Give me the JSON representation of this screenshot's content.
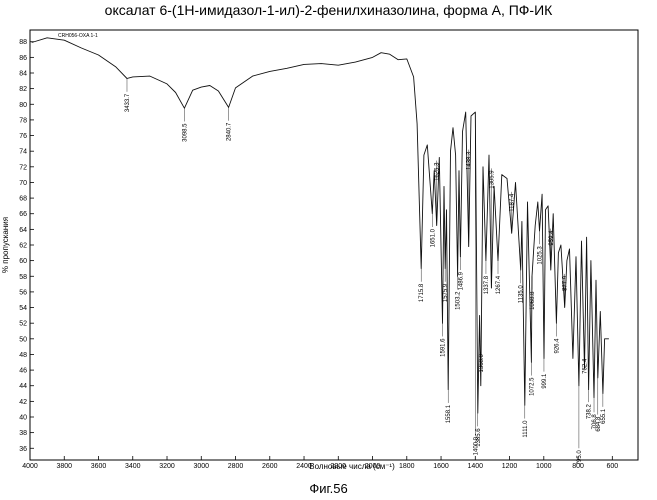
{
  "title": "оксалат 6-(1Н-имидазол-1-ил)-2-фенилхиназолина, форма А, ПФ-ИК",
  "caption": "Фиг.56",
  "chart_data": {
    "type": "line",
    "xlabel": "Волновые числа (см⁻¹)",
    "ylabel": "% пропускания",
    "xlim": [
      4000,
      450
    ],
    "ylim": [
      34.5,
      89.5
    ],
    "x_ticks": [
      4000,
      3800,
      3600,
      3400,
      3200,
      3000,
      2800,
      2600,
      2400,
      2200,
      2000,
      1800,
      1600,
      1400,
      1200,
      1000,
      800,
      600
    ],
    "y_ticks": [
      36,
      38,
      40,
      42,
      44,
      46,
      48,
      50,
      52,
      54,
      56,
      58,
      60,
      62,
      64,
      66,
      68,
      70,
      72,
      74,
      76,
      78,
      80,
      82,
      84,
      86,
      88
    ],
    "grid": false,
    "series": [
      {
        "name": "",
        "x": [
          3990,
          3900,
          3800,
          3700,
          3600,
          3500,
          3433.7,
          3400,
          3300,
          3200,
          3150,
          3098.5,
          3050,
          3000,
          2950,
          2900,
          2840.7,
          2800,
          2700,
          2600,
          2500,
          2400,
          2300,
          2200,
          2100,
          2000,
          1950,
          1900,
          1850,
          1800,
          1760,
          1740,
          1715.8,
          1700,
          1680,
          1651.0,
          1640,
          1625.3,
          1610,
          1591.6,
          1583,
          1575.9,
          1568,
          1558.1,
          1545,
          1530,
          1515,
          1503.2,
          1495,
          1486.9,
          1475,
          1456,
          1438.3,
          1425,
          1400.0,
          1385.6,
          1375,
          1368.0,
          1355,
          1337.8,
          1320,
          1305.9,
          1290,
          1267.4,
          1245,
          1215,
          1187.4,
          1165,
          1135.0,
          1128,
          1111.0,
          1095,
          1072.5,
          1068.8,
          1050,
          1035,
          1025.3,
          1010,
          999.1,
          990,
          975,
          959.4,
          945,
          926.4,
          915,
          900,
          877.9,
          865,
          850,
          830,
          812,
          795.0,
          780,
          762.4,
          750,
          738.2,
          725,
          706.8,
          695,
          684.8,
          670,
          655.1,
          645,
          620
        ],
        "y": [
          87.9,
          88.5,
          88.2,
          87.2,
          86.3,
          84.8,
          83.3,
          83.5,
          83.6,
          82.6,
          81.5,
          79.5,
          81.8,
          82.2,
          82.4,
          81.7,
          79.6,
          82.1,
          83.6,
          84.2,
          84.6,
          85.1,
          85.2,
          85.0,
          85.4,
          86.0,
          86.6,
          86.4,
          85.7,
          85.8,
          83.5,
          77.5,
          59.0,
          73.5,
          74.8,
          66.0,
          71.5,
          64.5,
          73.2,
          52.0,
          69.5,
          59.0,
          66.5,
          43.5,
          74.0,
          77.0,
          73.5,
          58.0,
          71.5,
          60.5,
          76.5,
          79.0,
          61.8,
          78.5,
          79.0,
          40.5,
          53.0,
          44.0,
          72.0,
          60.0,
          73.5,
          56.5,
          69.5,
          60.0,
          71.0,
          70.5,
          63.5,
          70.0,
          58.8,
          65.0,
          41.5,
          67.5,
          47.0,
          58.0,
          64.5,
          67.5,
          63.8,
          68.5,
          47.5,
          66.5,
          67.0,
          58.8,
          66.0,
          52.0,
          61.0,
          62.0,
          54.0,
          60.0,
          61.5,
          47.5,
          60.5,
          44.0,
          62.5,
          46.2,
          63.0,
          43.5,
          60.0,
          42.5,
          57.5,
          45.0,
          53.5,
          43.0,
          50.0,
          50.0
        ]
      }
    ],
    "annotations": [
      {
        "label": "3433.7",
        "x": 3433.7,
        "y": 83.3,
        "label_end_y": 81.6
      },
      {
        "label": "3098.5",
        "x": 3098.5,
        "y": 79.5,
        "label_end_y": 77.8
      },
      {
        "label": "2840.7",
        "x": 2840.7,
        "y": 79.6,
        "label_end_y": 77.9
      },
      {
        "label": "1715.8",
        "x": 1715.8,
        "y": 59.0,
        "label_end_y": 57.3
      },
      {
        "label": "1651.0",
        "x": 1651.0,
        "y": 66.0,
        "label_end_y": 64.3
      },
      {
        "label": "1625.3",
        "x": 1625.3,
        "y": 64.5,
        "label_end_y": 72.8
      },
      {
        "label": "1591.6",
        "x": 1591.6,
        "y": 52.0,
        "label_end_y": 50.3
      },
      {
        "label": "1575.9",
        "x": 1575.9,
        "y": 59.0,
        "label_end_y": 57.3
      },
      {
        "label": "1558.1",
        "x": 1558.1,
        "y": 43.5,
        "label_end_y": 41.8
      },
      {
        "label": "1503.2",
        "x": 1503.2,
        "y": 58.0,
        "label_end_y": 56.3
      },
      {
        "label": "1486.9",
        "x": 1486.9,
        "y": 60.5,
        "label_end_y": 58.8
      },
      {
        "label": "1438.3",
        "x": 1438.3,
        "y": 61.8,
        "label_end_y": 74.2
      },
      {
        "label": "1400.0",
        "x": 1400.0,
        "y": 79.0,
        "label_end_y": 37.7
      },
      {
        "label": "1385.6",
        "x": 1385.6,
        "y": 40.5,
        "label_end_y": 38.8
      },
      {
        "label": "1368.0",
        "x": 1368.0,
        "y": 44.0,
        "label_end_y": 48.3
      },
      {
        "label": "1337.8",
        "x": 1337.8,
        "y": 60.0,
        "label_end_y": 58.3
      },
      {
        "label": "1305.9",
        "x": 1305.9,
        "y": 56.5,
        "label_end_y": 71.8
      },
      {
        "label": "1267.4",
        "x": 1267.4,
        "y": 60.0,
        "label_end_y": 58.3
      },
      {
        "label": "1187.4",
        "x": 1187.4,
        "y": 63.5,
        "label_end_y": 68.8
      },
      {
        "label": "1135.0",
        "x": 1135.0,
        "y": 58.8,
        "label_end_y": 57.1
      },
      {
        "label": "1111.0",
        "x": 1111.0,
        "y": 41.5,
        "label_end_y": 39.8
      },
      {
        "label": "1072.5",
        "x": 1072.5,
        "y": 47.0,
        "label_end_y": 45.3
      },
      {
        "label": "1068.8",
        "x": 1068.8,
        "y": 58.0,
        "label_end_y": 56.3
      },
      {
        "label": "1025.3",
        "x": 1025.3,
        "y": 63.8,
        "label_end_y": 62.1
      },
      {
        "label": "999.1",
        "x": 999.1,
        "y": 47.5,
        "label_end_y": 45.8
      },
      {
        "label": "959.4",
        "x": 959.4,
        "y": 58.8,
        "label_end_y": 64.1
      },
      {
        "label": "926.4",
        "x": 926.4,
        "y": 52.0,
        "label_end_y": 50.3
      },
      {
        "label": "877.9",
        "x": 877.9,
        "y": 54.0,
        "label_end_y": 58.3
      },
      {
        "label": "795.0",
        "x": 795.0,
        "y": 44.0,
        "label_end_y": 36.0
      },
      {
        "label": "762.4",
        "x": 762.4,
        "y": 46.2,
        "label_end_y": 47.7
      },
      {
        "label": "738.2",
        "x": 738.2,
        "y": 43.5,
        "label_end_y": 41.9
      },
      {
        "label": "706.8",
        "x": 706.8,
        "y": 42.5,
        "label_end_y": 40.6
      },
      {
        "label": "684.8",
        "x": 684.8,
        "y": 45.0,
        "label_end_y": 40.3
      },
      {
        "label": "655.1",
        "x": 655.1,
        "y": 43.0,
        "label_end_y": 41.3
      }
    ],
    "sample_label": "CRH056-OXA 1-1",
    "colors": {
      "line": "#111111",
      "axis": "#000000",
      "background": "#ffffff"
    }
  }
}
